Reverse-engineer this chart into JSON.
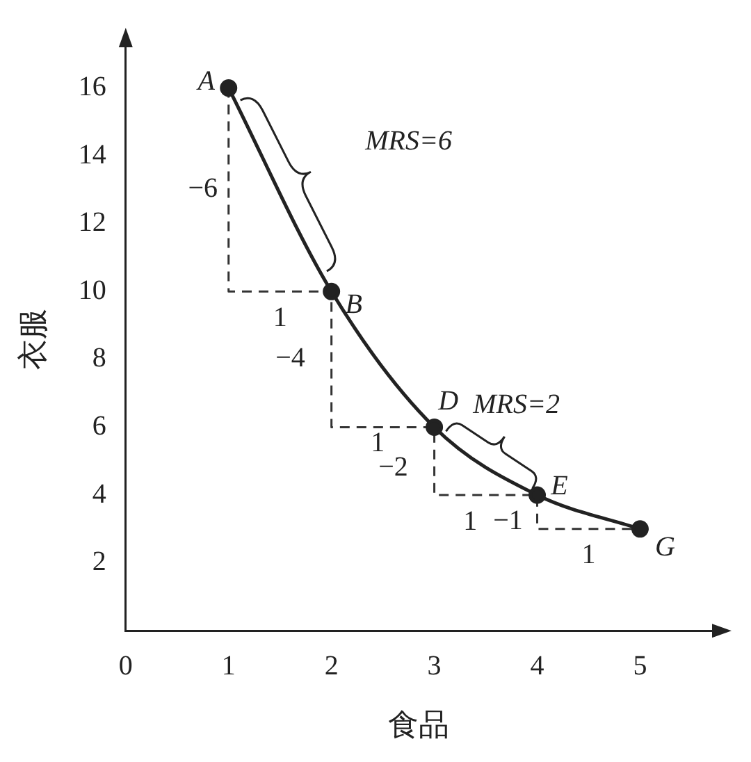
{
  "chart_data": {
    "type": "line",
    "xlabel": "食品",
    "ylabel": "衣服",
    "x": [
      1,
      2,
      3,
      4,
      5
    ],
    "series": [
      {
        "color": "#222222",
        "values": [
          16,
          10,
          6,
          4,
          3
        ],
        "marker": "circle",
        "line_style": "solid"
      },
      {
        "type": "step",
        "color": "#333333",
        "values": [
          16,
          10,
          6,
          4,
          3
        ],
        "marker": "none",
        "line_style": "dashed"
      }
    ],
    "xlim": [
      0,
      5.7
    ],
    "ylim": [
      0,
      17.2
    ],
    "xticks": [
      0,
      1,
      2,
      3,
      4,
      5
    ],
    "yticks": [
      2,
      4,
      6,
      8,
      10,
      12,
      14,
      16
    ],
    "grid": false,
    "legend": false,
    "annotations": [
      {
        "text": "A",
        "x": 1,
        "y": 16
      },
      {
        "text": "B",
        "x": 2,
        "y": 10
      },
      {
        "text": "D",
        "x": 3,
        "y": 6
      },
      {
        "text": "E",
        "x": 4,
        "y": 4
      },
      {
        "text": "G",
        "x": 5,
        "y": 3
      },
      "−6",
      "1",
      "−4",
      "1",
      "−2",
      "1",
      {
        "text": "−1",
        "x": 4,
        "y": 3.5
      },
      "1",
      "MRS=6",
      {
        "text": "MRS=2",
        "x": 3.5,
        "y": 5
      }
    ]
  }
}
